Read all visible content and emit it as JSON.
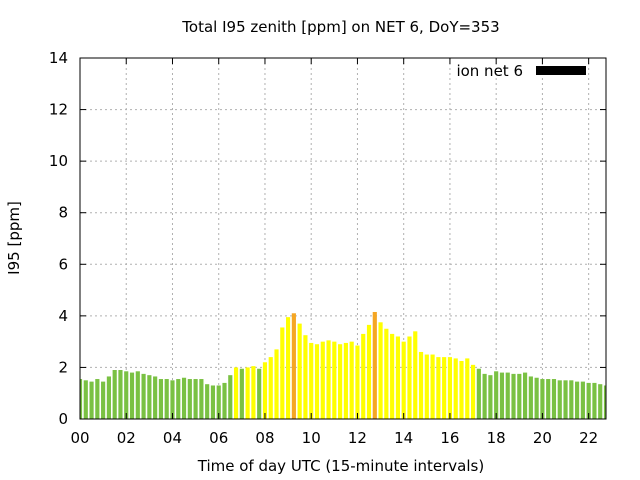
{
  "chart_data": {
    "type": "bar",
    "title": "Total I95 zenith [ppm] on NET 6, DoY=353",
    "xlabel": "Time of day UTC (15-minute intervals)",
    "ylabel": "I95 [ppm]",
    "xlim": [
      0,
      22.75
    ],
    "ylim": [
      0,
      14
    ],
    "x_ticks": [
      "00",
      "02",
      "04",
      "06",
      "08",
      "10",
      "12",
      "14",
      "16",
      "18",
      "20",
      "22"
    ],
    "y_ticks": [
      "0",
      "2",
      "4",
      "6",
      "8",
      "10",
      "12",
      "14"
    ],
    "grid": true,
    "legend": {
      "position": "top-right",
      "entries": [
        {
          "label": "ion net 6",
          "color": "#000000"
        }
      ]
    },
    "bar_interval_hours": 0.25,
    "colors": {
      "low": "#7ac143",
      "mid": "#ffff00",
      "high": "#f5a623",
      "legend_swatch": "#000000"
    },
    "values": [
      1.55,
      1.5,
      1.45,
      1.55,
      1.45,
      1.65,
      1.9,
      1.9,
      1.85,
      1.8,
      1.85,
      1.75,
      1.7,
      1.65,
      1.55,
      1.55,
      1.5,
      1.55,
      1.6,
      1.55,
      1.55,
      1.55,
      1.35,
      1.3,
      1.3,
      1.4,
      1.7,
      2.0,
      1.95,
      2.0,
      2.05,
      1.95,
      2.2,
      2.4,
      2.7,
      3.55,
      3.95,
      4.1,
      3.7,
      3.25,
      2.95,
      2.9,
      3.0,
      3.05,
      3.0,
      2.9,
      2.95,
      3.0,
      2.85,
      3.3,
      3.65,
      4.15,
      3.75,
      3.5,
      3.3,
      3.2,
      3.0,
      3.2,
      3.4,
      2.6,
      2.5,
      2.5,
      2.4,
      2.4,
      2.4,
      2.35,
      2.25,
      2.35,
      2.1,
      1.95,
      1.75,
      1.7,
      1.85,
      1.8,
      1.8,
      1.75,
      1.75,
      1.8,
      1.65,
      1.6,
      1.55,
      1.55,
      1.55,
      1.5,
      1.5,
      1.5,
      1.45,
      1.45,
      1.4,
      1.4,
      1.35,
      1.3
    ]
  }
}
